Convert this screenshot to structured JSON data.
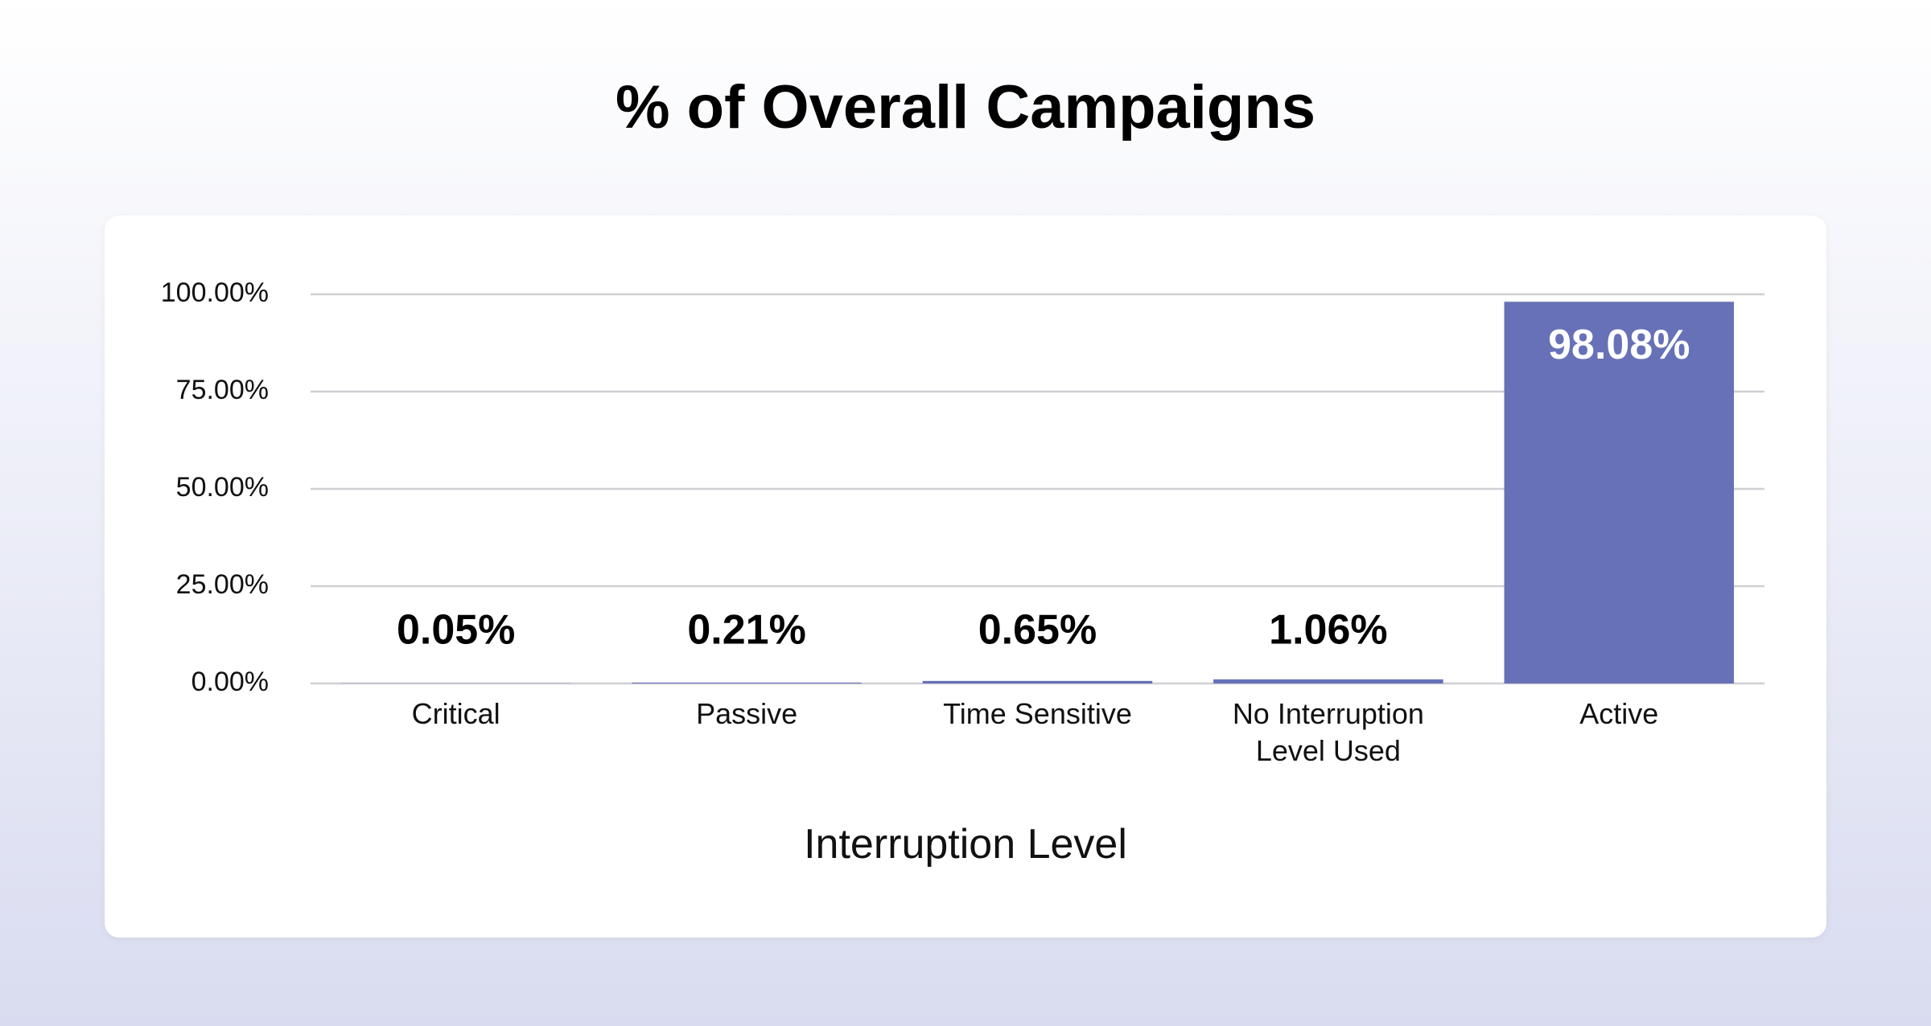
{
  "chart_data": {
    "type": "bar",
    "title": "% of Overall Campaigns",
    "x_label": "Interruption Level",
    "categories": [
      "Critical",
      "Passive",
      "Time Sensitive",
      "No Interruption Level Used",
      "Active"
    ],
    "values": [
      0.05,
      0.21,
      0.65,
      1.06,
      98.08
    ],
    "value_labels": [
      "0.05%",
      "0.21%",
      "0.65%",
      "1.06%",
      "98.08%"
    ],
    "color": "#6671b7",
    "ylim": [
      0,
      100
    ],
    "yticks": [
      {
        "value": 0,
        "label": "0.00%"
      },
      {
        "value": 25,
        "label": "25.00%"
      },
      {
        "value": 50,
        "label": "50.00%"
      },
      {
        "value": 75,
        "label": "75.00%"
      },
      {
        "value": 100,
        "label": "100.00%"
      }
    ],
    "grid": true
  }
}
